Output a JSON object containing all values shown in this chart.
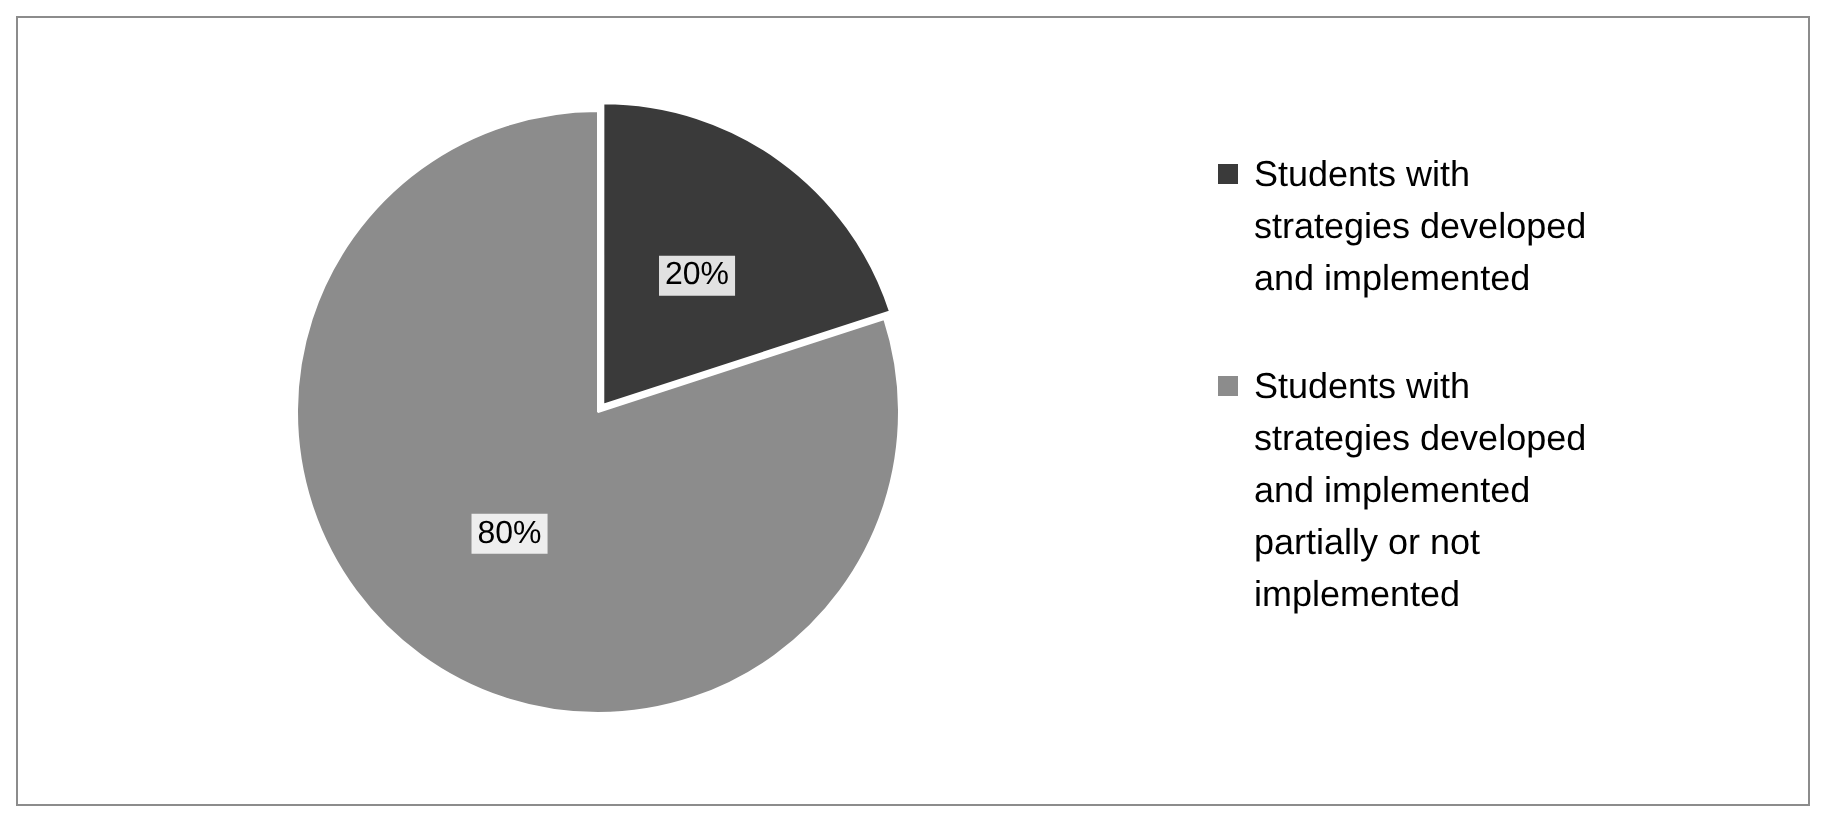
{
  "chart_data": {
    "type": "pie",
    "categories": [
      "Students with strategies developed and implemented",
      "Students with strategies developed and implemented partially or not implemented"
    ],
    "values": [
      20,
      80
    ],
    "colors": [
      "#3a3a3a",
      "#8c8c8c"
    ],
    "value_labels": [
      "20%",
      "80%"
    ],
    "legend": "right"
  }
}
